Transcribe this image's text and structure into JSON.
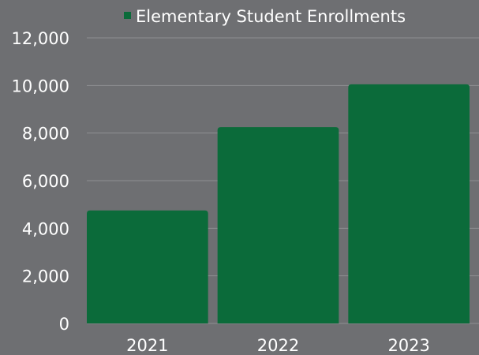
{
  "colors": {
    "background": "#6e6f72",
    "bar": "#0b6b3a",
    "text": "#ffffff",
    "grid": "#8e8f92"
  },
  "chart_data": {
    "type": "bar",
    "categories": [
      "2021",
      "2022",
      "2023"
    ],
    "series": [
      {
        "name": "Elementary Student Enrollments",
        "values": [
          4750,
          8250,
          10050
        ]
      }
    ],
    "ylim": [
      0,
      12000
    ],
    "yticks": [
      0,
      2000,
      4000,
      6000,
      8000,
      10000,
      12000
    ],
    "ytick_labels": [
      "0",
      "2,000",
      "4,000",
      "6,000",
      "8,000",
      "10,000",
      "12,000"
    ],
    "grid": true,
    "legend_position": "top"
  }
}
